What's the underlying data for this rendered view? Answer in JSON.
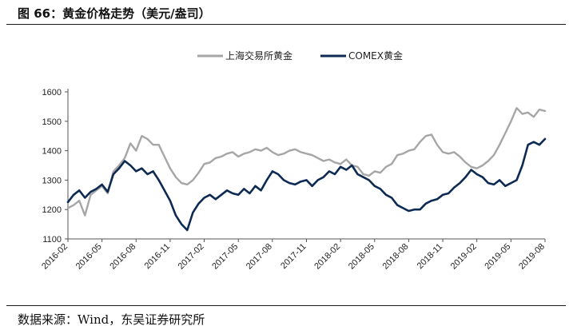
{
  "header": {
    "title": "图 66：黄金价格走势（美元/盎司）"
  },
  "footer": {
    "source": "数据来源：Wind，东吴证券研究所"
  },
  "chart_data": {
    "type": "line",
    "title": "黄金价格走势（美元/盎司）",
    "xlabel": "",
    "ylabel": "",
    "ylim": [
      1100,
      1600
    ],
    "yticks": [
      1100,
      1200,
      1300,
      1400,
      1500,
      1600
    ],
    "xlim": [
      0,
      42
    ],
    "xtick_labels": [
      "2016-02",
      "2016-05",
      "2016-08",
      "2016-11",
      "2017-02",
      "2017-05",
      "2017-08",
      "2017-11",
      "2018-02",
      "2018-05",
      "2018-08",
      "2018-11",
      "2019-02",
      "2019-05",
      "2019-08"
    ],
    "legend_position": "top",
    "series": [
      {
        "name": "上海交易所黄金",
        "color": "#a6a6a6",
        "x": [
          0,
          0.5,
          1,
          1.5,
          2,
          2.5,
          3,
          3.5,
          4,
          4.5,
          5,
          5.5,
          6,
          6.5,
          7,
          7.5,
          8,
          8.5,
          9,
          9.5,
          10,
          10.5,
          11,
          11.5,
          12,
          12.5,
          13,
          13.5,
          14,
          14.5,
          15,
          15.5,
          16,
          16.5,
          17,
          17.5,
          18,
          18.5,
          19,
          19.5,
          20,
          20.5,
          21,
          21.5,
          22,
          22.5,
          23,
          23.5,
          24,
          24.5,
          25,
          25.5,
          26,
          26.5,
          27,
          27.5,
          28,
          28.5,
          29,
          29.5,
          30,
          30.5,
          31,
          31.5,
          32,
          32.5,
          33,
          33.5,
          34,
          34.5,
          35,
          35.5,
          36,
          36.5,
          37,
          37.5,
          38,
          38.5,
          39,
          39.5,
          40,
          40.5,
          41,
          41.5,
          42
        ],
        "values": [
          1205,
          1215,
          1230,
          1180,
          1250,
          1265,
          1280,
          1255,
          1330,
          1350,
          1375,
          1425,
          1400,
          1450,
          1440,
          1420,
          1420,
          1380,
          1340,
          1310,
          1290,
          1285,
          1300,
          1325,
          1355,
          1360,
          1375,
          1380,
          1390,
          1395,
          1380,
          1390,
          1395,
          1405,
          1400,
          1410,
          1395,
          1385,
          1390,
          1400,
          1405,
          1395,
          1390,
          1385,
          1375,
          1365,
          1370,
          1360,
          1355,
          1370,
          1350,
          1345,
          1320,
          1315,
          1330,
          1325,
          1345,
          1355,
          1385,
          1390,
          1400,
          1405,
          1430,
          1450,
          1455,
          1420,
          1395,
          1390,
          1395,
          1380,
          1360,
          1345,
          1340,
          1350,
          1365,
          1385,
          1420,
          1460,
          1500,
          1545,
          1525,
          1530,
          1515,
          1540,
          1535
        ]
      },
      {
        "name": "COMEX黄金",
        "color": "#0d2a52",
        "x": [
          0,
          0.5,
          1,
          1.5,
          2,
          2.5,
          3,
          3.5,
          4,
          4.5,
          5,
          5.5,
          6,
          6.5,
          7,
          7.5,
          8,
          8.5,
          9,
          9.5,
          10,
          10.5,
          11,
          11.5,
          12,
          12.5,
          13,
          13.5,
          14,
          14.5,
          15,
          15.5,
          16,
          16.5,
          17,
          17.5,
          18,
          18.5,
          19,
          19.5,
          20,
          20.5,
          21,
          21.5,
          22,
          22.5,
          23,
          23.5,
          24,
          24.5,
          25,
          25.5,
          26,
          26.5,
          27,
          27.5,
          28,
          28.5,
          29,
          29.5,
          30,
          30.5,
          31,
          31.5,
          32,
          32.5,
          33,
          33.5,
          34,
          34.5,
          35,
          35.5,
          36,
          36.5,
          37,
          37.5,
          38,
          38.5,
          39,
          39.5,
          40,
          40.5,
          41,
          41.5,
          42
        ],
        "values": [
          1225,
          1250,
          1265,
          1240,
          1260,
          1270,
          1285,
          1260,
          1320,
          1340,
          1365,
          1350,
          1330,
          1340,
          1320,
          1330,
          1300,
          1265,
          1230,
          1180,
          1150,
          1130,
          1190,
          1220,
          1240,
          1250,
          1235,
          1250,
          1265,
          1255,
          1250,
          1270,
          1255,
          1280,
          1265,
          1300,
          1330,
          1320,
          1300,
          1290,
          1285,
          1295,
          1300,
          1280,
          1300,
          1310,
          1330,
          1320,
          1345,
          1335,
          1350,
          1320,
          1310,
          1300,
          1280,
          1270,
          1250,
          1240,
          1215,
          1205,
          1195,
          1200,
          1200,
          1220,
          1230,
          1235,
          1250,
          1255,
          1275,
          1290,
          1310,
          1335,
          1320,
          1310,
          1290,
          1285,
          1300,
          1280,
          1290,
          1300,
          1350,
          1420,
          1430,
          1420,
          1440
        ]
      }
    ]
  }
}
